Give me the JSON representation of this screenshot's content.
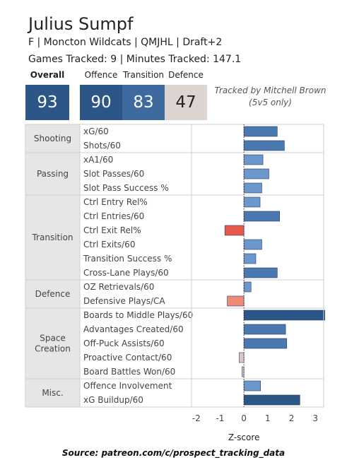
{
  "player": {
    "name": "Julius Sumpf",
    "info": "F | Moncton Wildcats | QMJHL | Draft+2",
    "tracking": "Games Tracked: 9 | Minutes Tracked: 147.1"
  },
  "scores": {
    "overall": {
      "label": "Overall",
      "value": "93",
      "color": "#2c5687"
    },
    "offence": {
      "label": "Offence",
      "value": "90",
      "color": "#2c5687"
    },
    "transition": {
      "label": "Transition",
      "value": "83",
      "color": "#3e6aa0"
    },
    "defence": {
      "label": "Defence",
      "value": "47",
      "color": "#ddd3d0"
    }
  },
  "tracked_by": [
    "Tracked by Mitchell Brown",
    "(5v5 only)"
  ],
  "source": "Source: patreon.com/c/prospect_tracking_data",
  "colors": {
    "positive_dark": "#2c5687",
    "positive_mid": "#4a78b0",
    "positive_light": "#6b97cc",
    "negative_strong": "#e8574a",
    "negative_mid": "#f08a78",
    "negative_light": "#ddc6c4",
    "category_bg": "#e6e6e6"
  },
  "chart_data": {
    "type": "bar",
    "orientation": "horizontal",
    "xlabel": "Z-score",
    "xlim": [
      -2.2,
      3.35
    ],
    "xticks": [
      -2,
      -1,
      0,
      1,
      2,
      3
    ],
    "zero_line": "dotted",
    "groups": [
      {
        "category": "Shooting",
        "metrics": [
          {
            "name": "xG/60",
            "value": 1.4
          },
          {
            "name": "Shots/60",
            "value": 1.7
          }
        ]
      },
      {
        "category": "Passing",
        "metrics": [
          {
            "name": "xA1/60",
            "value": 0.8
          },
          {
            "name": "Slot Passes/60",
            "value": 1.05
          },
          {
            "name": "Slot Pass Success %",
            "value": 0.75
          }
        ]
      },
      {
        "category": "Transition",
        "metrics": [
          {
            "name": "Ctrl Entry Rel%",
            "value": 0.68
          },
          {
            "name": "Ctrl Entries/60",
            "value": 1.5
          },
          {
            "name": "Ctrl Exit Rel%",
            "value": -0.8
          },
          {
            "name": "Ctrl Exits/60",
            "value": 0.75
          },
          {
            "name": "Transition Success %",
            "value": 0.5
          },
          {
            "name": "Cross-Lane Plays/60",
            "value": 1.4
          }
        ]
      },
      {
        "category": "Defence",
        "metrics": [
          {
            "name": "OZ Retrievals/60",
            "value": 0.3
          },
          {
            "name": "Defensive Plays/CA",
            "value": -0.7
          }
        ]
      },
      {
        "category": "Space Creation",
        "metrics": [
          {
            "name": "Boards to Middle Plays/60",
            "value": 3.4
          },
          {
            "name": "Advantages Created/60",
            "value": 1.75
          },
          {
            "name": "Off-Puck Assists/60",
            "value": 1.8
          },
          {
            "name": "Proactive Contact/60",
            "value": -0.2
          },
          {
            "name": "Board Battles Won/60",
            "value": -0.08
          }
        ]
      },
      {
        "category": "Misc.",
        "metrics": [
          {
            "name": "Offence Involvement",
            "value": 0.7
          },
          {
            "name": "xG Buildup/60",
            "value": 2.35
          }
        ]
      }
    ]
  }
}
